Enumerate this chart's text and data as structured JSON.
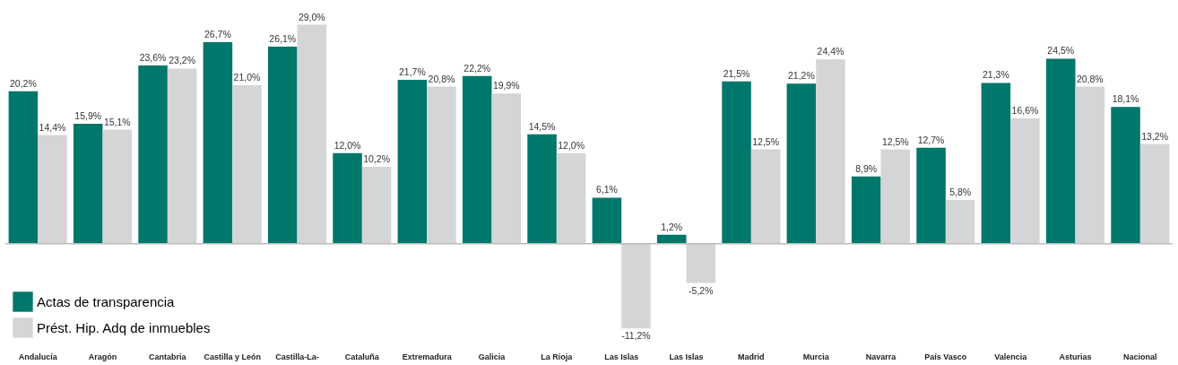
{
  "chart_data": {
    "type": "bar",
    "categories": [
      "Andalucía",
      "Aragón",
      "Cantabria",
      "Castilla y León",
      "Castilla-La-",
      "Cataluña",
      "Extremadura",
      "Galicia",
      "La Rioja",
      "Las Islas",
      "Las Islas",
      "Madrid",
      "Murcia",
      "Navarra",
      "País Vasco",
      "Valencia",
      "Asturias",
      "Nacional"
    ],
    "series": [
      {
        "name": "Actas de transparencia",
        "color": "#00776b",
        "values": [
          20.2,
          15.9,
          23.6,
          26.7,
          26.1,
          12.0,
          21.7,
          22.2,
          14.5,
          6.1,
          1.2,
          21.5,
          21.2,
          8.9,
          12.7,
          21.3,
          24.5,
          18.1
        ],
        "value_labels": [
          "20,2%",
          "15,9%",
          "23,6%",
          "26,7%",
          "26,1%",
          "12,0%",
          "21,7%",
          "22,2%",
          "14,5%",
          "6,1%",
          "1,2%",
          "21,5%",
          "21,2%",
          "8,9%",
          "12,7%",
          "21,3%",
          "24,5%",
          "18,1%"
        ]
      },
      {
        "name": "Prést. Hip. Adq de inmuebles",
        "color": "#d4d5d7",
        "values": [
          14.4,
          15.1,
          23.2,
          21.0,
          29.0,
          10.2,
          20.8,
          19.9,
          12.0,
          -11.2,
          -5.2,
          12.5,
          24.4,
          12.5,
          5.8,
          16.6,
          20.8,
          13.2
        ],
        "value_labels": [
          "14,4%",
          "15,1%",
          "23,2%",
          "21,0%",
          "29,0%",
          "10,2%",
          "20,8%",
          "19,9%",
          "12,0%",
          "-11,2%",
          "-5,2%",
          "12,5%",
          "24,4%",
          "12,5%",
          "5,8%",
          "16,6%",
          "20,8%",
          "13,2%"
        ]
      }
    ],
    "legend": "bottom left",
    "grid": false
  }
}
